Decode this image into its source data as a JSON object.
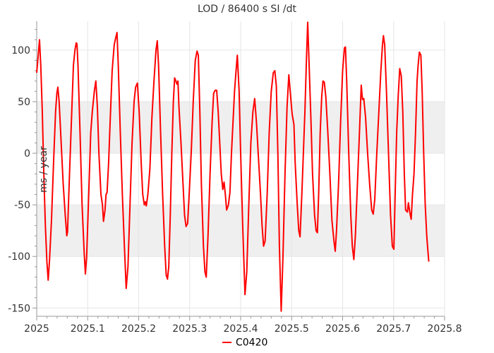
{
  "chart_data": {
    "type": "line",
    "title": "LOD / 86400 s SI /dt",
    "ylabel": "ms / year",
    "xlabel": "",
    "xlim": [
      2025,
      2025.8
    ],
    "ylim": [
      -158,
      128
    ],
    "x_ticks": [
      2025,
      2025.1,
      2025.2,
      2025.3,
      2025.4,
      2025.5,
      2025.6,
      2025.7,
      2025.8
    ],
    "x_tick_labels": [
      "2025",
      "2025.1",
      "2025.2",
      "2025.3",
      "2025.4",
      "2025.5",
      "2025.6",
      "2025.7",
      "2025.8"
    ],
    "y_ticks": [
      100,
      50,
      0,
      -50,
      -100,
      -150
    ],
    "y_tick_labels": [
      "100",
      "50",
      "0",
      "-50",
      "-100",
      "-150"
    ],
    "bands": [
      [
        0,
        50
      ],
      [
        -100,
        -50
      ]
    ],
    "grid": true,
    "legend_position": "bottom-center",
    "series": [
      {
        "name": "C0420",
        "color": "#ff0000",
        "points": [
          [
            2025.0,
            78
          ],
          [
            2025.003,
            95
          ],
          [
            2025.0055,
            110
          ],
          [
            2025.008,
            85
          ],
          [
            2025.011,
            40
          ],
          [
            2025.014,
            -20
          ],
          [
            2025.017,
            -70
          ],
          [
            2025.02,
            -105
          ],
          [
            2025.0225,
            -123
          ],
          [
            2025.025,
            -105
          ],
          [
            2025.029,
            -65
          ],
          [
            2025.033,
            -10
          ],
          [
            2025.037,
            40
          ],
          [
            2025.0395,
            58
          ],
          [
            2025.0415,
            64
          ],
          [
            2025.044,
            50
          ],
          [
            2025.048,
            10
          ],
          [
            2025.052,
            -30
          ],
          [
            2025.056,
            -60
          ],
          [
            2025.059,
            -80
          ],
          [
            2025.0605,
            -76
          ],
          [
            2025.064,
            -25
          ],
          [
            2025.068,
            30
          ],
          [
            2025.072,
            85
          ],
          [
            2025.075,
            100
          ],
          [
            2025.0775,
            107
          ],
          [
            2025.079,
            106
          ],
          [
            2025.081,
            85
          ],
          [
            2025.085,
            20
          ],
          [
            2025.089,
            -50
          ],
          [
            2025.093,
            -95
          ],
          [
            2025.0955,
            -117
          ],
          [
            2025.098,
            -100
          ],
          [
            2025.102,
            -40
          ],
          [
            2025.106,
            20
          ],
          [
            2025.109,
            40
          ],
          [
            2025.113,
            60
          ],
          [
            2025.116,
            70
          ],
          [
            2025.119,
            45
          ],
          [
            2025.122,
            0
          ],
          [
            2025.126,
            -40
          ],
          [
            2025.129,
            -50
          ],
          [
            2025.131,
            -66
          ],
          [
            2025.134,
            -55
          ],
          [
            2025.136,
            -40
          ],
          [
            2025.138,
            -38
          ],
          [
            2025.141,
            -10
          ],
          [
            2025.144,
            30
          ],
          [
            2025.148,
            80
          ],
          [
            2025.152,
            105
          ],
          [
            2025.155,
            112
          ],
          [
            2025.1575,
            117
          ],
          [
            2025.16,
            85
          ],
          [
            2025.164,
            20
          ],
          [
            2025.168,
            -40
          ],
          [
            2025.172,
            -90
          ],
          [
            2025.1755,
            -131
          ],
          [
            2025.179,
            -110
          ],
          [
            2025.183,
            -50
          ],
          [
            2025.187,
            10
          ],
          [
            2025.191,
            50
          ],
          [
            2025.194,
            64
          ],
          [
            2025.1975,
            68
          ],
          [
            2025.201,
            40
          ],
          [
            2025.205,
            -10
          ],
          [
            2025.208,
            -40
          ],
          [
            2025.211,
            -50
          ],
          [
            2025.213,
            -47
          ],
          [
            2025.215,
            -51
          ],
          [
            2025.218,
            -40
          ],
          [
            2025.222,
            -15
          ],
          [
            2025.226,
            35
          ],
          [
            2025.23,
            70
          ],
          [
            2025.234,
            100
          ],
          [
            2025.2365,
            109
          ],
          [
            2025.239,
            85
          ],
          [
            2025.243,
            20
          ],
          [
            2025.247,
            -40
          ],
          [
            2025.251,
            -90
          ],
          [
            2025.254,
            -118
          ],
          [
            2025.2565,
            -122
          ],
          [
            2025.259,
            -110
          ],
          [
            2025.262,
            -60
          ],
          [
            2025.265,
            0
          ],
          [
            2025.268,
            50
          ],
          [
            2025.2705,
            73
          ],
          [
            2025.273,
            70
          ],
          [
            2025.275,
            67
          ],
          [
            2025.277,
            70
          ],
          [
            2025.279,
            45
          ],
          [
            2025.283,
            10
          ],
          [
            2025.287,
            -30
          ],
          [
            2025.29,
            -60
          ],
          [
            2025.293,
            -71
          ],
          [
            2025.296,
            -68
          ],
          [
            2025.299,
            -40
          ],
          [
            2025.303,
            0
          ],
          [
            2025.307,
            50
          ],
          [
            2025.311,
            90
          ],
          [
            2025.3145,
            99
          ],
          [
            2025.317,
            95
          ],
          [
            2025.32,
            40
          ],
          [
            2025.323,
            -30
          ],
          [
            2025.327,
            -90
          ],
          [
            2025.33,
            -115
          ],
          [
            2025.3325,
            -120
          ],
          [
            2025.336,
            -80
          ],
          [
            2025.34,
            -20
          ],
          [
            2025.344,
            30
          ],
          [
            2025.347,
            58
          ],
          [
            2025.35,
            61
          ],
          [
            2025.353,
            61
          ],
          [
            2025.356,
            40
          ],
          [
            2025.359,
            10
          ],
          [
            2025.362,
            -20
          ],
          [
            2025.365,
            -35
          ],
          [
            2025.3675,
            -28
          ],
          [
            2025.37,
            -40
          ],
          [
            2025.3725,
            -55
          ],
          [
            2025.376,
            -50
          ],
          [
            2025.379,
            -38
          ],
          [
            2025.382,
            0
          ],
          [
            2025.385,
            30
          ],
          [
            2025.388,
            60
          ],
          [
            2025.391,
            80
          ],
          [
            2025.3935,
            95
          ],
          [
            2025.397,
            60
          ],
          [
            2025.4,
            0
          ],
          [
            2025.404,
            -70
          ],
          [
            2025.4085,
            -137
          ],
          [
            2025.412,
            -115
          ],
          [
            2025.416,
            -50
          ],
          [
            2025.42,
            10
          ],
          [
            2025.424,
            40
          ],
          [
            2025.4275,
            53
          ],
          [
            2025.431,
            30
          ],
          [
            2025.435,
            -5
          ],
          [
            2025.439,
            -40
          ],
          [
            2025.442,
            -70
          ],
          [
            2025.445,
            -90
          ],
          [
            2025.448,
            -85
          ],
          [
            2025.452,
            -40
          ],
          [
            2025.456,
            20
          ],
          [
            2025.46,
            60
          ],
          [
            2025.464,
            78
          ],
          [
            2025.467,
            80
          ],
          [
            2025.47,
            65
          ],
          [
            2025.473,
            0
          ],
          [
            2025.476,
            -90
          ],
          [
            2025.4795,
            -153
          ],
          [
            2025.483,
            -100
          ],
          [
            2025.487,
            -20
          ],
          [
            2025.491,
            45
          ],
          [
            2025.4945,
            76
          ],
          [
            2025.498,
            55
          ],
          [
            2025.501,
            38
          ],
          [
            2025.5045,
            28
          ],
          [
            2025.507,
            -10
          ],
          [
            2025.511,
            -50
          ],
          [
            2025.514,
            -75
          ],
          [
            2025.5165,
            -81
          ],
          [
            2025.52,
            -40
          ],
          [
            2025.523,
            0
          ],
          [
            2025.526,
            40
          ],
          [
            2025.529,
            90
          ],
          [
            2025.5315,
            127
          ],
          [
            2025.534,
            90
          ],
          [
            2025.538,
            30
          ],
          [
            2025.541,
            -20
          ],
          [
            2025.545,
            -60
          ],
          [
            2025.548,
            -75
          ],
          [
            2025.5505,
            -77
          ],
          [
            2025.553,
            -40
          ],
          [
            2025.556,
            20
          ],
          [
            2025.559,
            55
          ],
          [
            2025.5615,
            70
          ],
          [
            2025.564,
            69
          ],
          [
            2025.567,
            55
          ],
          [
            2025.571,
            20
          ],
          [
            2025.575,
            -20
          ],
          [
            2025.579,
            -65
          ],
          [
            2025.583,
            -85
          ],
          [
            2025.5855,
            -95
          ],
          [
            2025.588,
            -75
          ],
          [
            2025.592,
            -30
          ],
          [
            2025.596,
            30
          ],
          [
            2025.6,
            80
          ],
          [
            2025.6035,
            102
          ],
          [
            2025.6055,
            103
          ],
          [
            2025.608,
            70
          ],
          [
            2025.612,
            0
          ],
          [
            2025.616,
            -60
          ],
          [
            2025.619,
            -90
          ],
          [
            2025.622,
            -103
          ],
          [
            2025.625,
            -80
          ],
          [
            2025.629,
            -30
          ],
          [
            2025.633,
            20
          ],
          [
            2025.6365,
            66
          ],
          [
            2025.639,
            52
          ],
          [
            2025.6415,
            53
          ],
          [
            2025.645,
            35
          ],
          [
            2025.649,
            0
          ],
          [
            2025.653,
            -30
          ],
          [
            2025.657,
            -55
          ],
          [
            2025.66,
            -59
          ],
          [
            2025.663,
            -45
          ],
          [
            2025.667,
            0
          ],
          [
            2025.671,
            40
          ],
          [
            2025.675,
            80
          ],
          [
            2025.678,
            104
          ],
          [
            2025.68,
            114
          ],
          [
            2025.6825,
            105
          ],
          [
            2025.686,
            60
          ],
          [
            2025.69,
            0
          ],
          [
            2025.694,
            -60
          ],
          [
            2025.6975,
            -90
          ],
          [
            2025.7005,
            -93
          ],
          [
            2025.703,
            -40
          ],
          [
            2025.706,
            20
          ],
          [
            2025.709,
            55
          ],
          [
            2025.712,
            82
          ],
          [
            2025.715,
            75
          ],
          [
            2025.718,
            40
          ],
          [
            2025.721,
            -20
          ],
          [
            2025.7235,
            -55
          ],
          [
            2025.727,
            -57
          ],
          [
            2025.729,
            -48
          ],
          [
            2025.732,
            -58
          ],
          [
            2025.7345,
            -64
          ],
          [
            2025.737,
            -40
          ],
          [
            2025.74,
            -20
          ],
          [
            2025.743,
            20
          ],
          [
            2025.746,
            70
          ],
          [
            2025.748,
            85
          ],
          [
            2025.7505,
            98
          ],
          [
            2025.7535,
            95
          ],
          [
            2025.756,
            60
          ],
          [
            2025.759,
            0
          ],
          [
            2025.762,
            -50
          ],
          [
            2025.765,
            -80
          ],
          [
            2025.767,
            -93
          ],
          [
            2025.769,
            -105
          ]
        ]
      }
    ]
  }
}
